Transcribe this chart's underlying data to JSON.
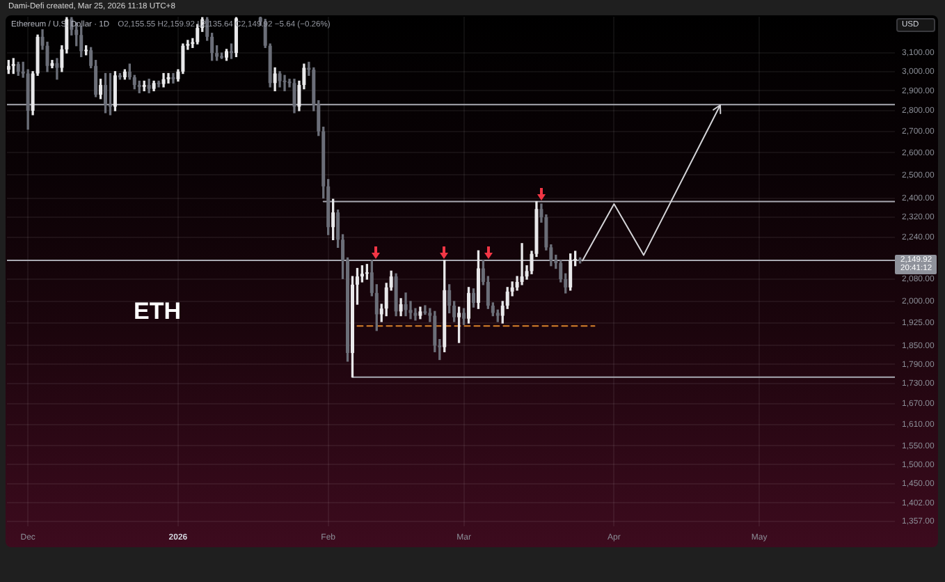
{
  "chart_data": {
    "type": "candlestick",
    "title": "Ethereum / U.S. Dollar · 1D",
    "subtitle": "O2,155.55 H2,159.92 L2,135.64 C2,149.92 −5.64 (−0.26%)",
    "ylabel": "USD",
    "annotations": [
      "ETH",
      "2,149.92",
      "20:41:12",
      "Dami-Defi created, Mar 25, 2026 11:18 UTC+8"
    ],
    "log": true,
    "grid": true,
    "xlim": [
      "2025-11-26T16:00",
      "2026-05-29"
    ],
    "xticks": [
      {
        "value": "2025-12-01",
        "label": "Dec"
      },
      {
        "value": "2026-01-01",
        "label": "2026"
      },
      {
        "value": "2026-02-01",
        "label": "Feb"
      },
      {
        "value": "2026-03-01",
        "label": "Mar"
      },
      {
        "value": "2026-04-01",
        "label": "Apr"
      },
      {
        "value": "2026-05-01",
        "label": "May"
      }
    ],
    "ylim": [
      1345,
      3305
    ],
    "yticks": [
      {
        "value": 1357,
        "label": "1,357.00"
      },
      {
        "value": 1402,
        "label": "1,402.00"
      },
      {
        "value": 1450,
        "label": "1,450.00"
      },
      {
        "value": 1500,
        "label": "1,500.00"
      },
      {
        "value": 1550,
        "label": "1,550.00"
      },
      {
        "value": 1610,
        "label": "1,610.00"
      },
      {
        "value": 1670,
        "label": "1,670.00"
      },
      {
        "value": 1730,
        "label": "1,730.00"
      },
      {
        "value": 1790,
        "label": "1,790.00"
      },
      {
        "value": 1850,
        "label": "1,850.00"
      },
      {
        "value": 1925,
        "label": "1,925.00"
      },
      {
        "value": 2000,
        "label": "2,000.00"
      },
      {
        "value": 2080,
        "label": "2,080.00"
      },
      {
        "value": 2240,
        "label": "2,240.00"
      },
      {
        "value": 2320,
        "label": "2,320.00"
      },
      {
        "value": 2400,
        "label": "2,400.00"
      },
      {
        "value": 2500,
        "label": "2,500.00"
      },
      {
        "value": 2600,
        "label": "2,600.00"
      },
      {
        "value": 2700,
        "label": "2,700.00"
      },
      {
        "value": 2800,
        "label": "2,800.00"
      },
      {
        "value": 2900,
        "label": "2,900.00"
      },
      {
        "value": 3000,
        "label": "3,000.00"
      },
      {
        "value": 3100,
        "label": "3,100.00"
      }
    ],
    "ref_lines": [
      {
        "axis": "y",
        "value": 2830,
        "color": "#a9aab2"
      },
      {
        "axis": "y",
        "value": 2150,
        "color": "#a9aab2"
      }
    ],
    "series": [
      {
        "type": "candlestick",
        "x": [
          "2025-11-27",
          "2025-11-28",
          "2025-11-29",
          "2025-11-30",
          "2025-12-01",
          "2025-12-02",
          "2025-12-03",
          "2025-12-04",
          "2025-12-05",
          "2025-12-06",
          "2025-12-07",
          "2025-12-08",
          "2025-12-09",
          "2025-12-10",
          "2025-12-11",
          "2025-12-12",
          "2025-12-13",
          "2025-12-14",
          "2025-12-15",
          "2025-12-16",
          "2025-12-17",
          "2025-12-18",
          "2025-12-19",
          "2025-12-20",
          "2025-12-21",
          "2025-12-22",
          "2025-12-23",
          "2025-12-24",
          "2025-12-25",
          "2025-12-26",
          "2025-12-27",
          "2025-12-28",
          "2025-12-29",
          "2025-12-30",
          "2025-12-31",
          "2026-01-01",
          "2026-01-02",
          "2026-01-03",
          "2026-01-04",
          "2026-01-05",
          "2026-01-06",
          "2026-01-07",
          "2026-01-08",
          "2026-01-09",
          "2026-01-10",
          "2026-01-11",
          "2026-01-12",
          "2026-01-13",
          "2026-01-18",
          "2026-01-19",
          "2026-01-20",
          "2026-01-21",
          "2026-01-22",
          "2026-01-23",
          "2026-01-24",
          "2026-01-25",
          "2026-01-26",
          "2026-01-27",
          "2026-01-28",
          "2026-01-29",
          "2026-01-30",
          "2026-01-31",
          "2026-02-01",
          "2026-02-02",
          "2026-02-03",
          "2026-02-04",
          "2026-02-05",
          "2026-02-06",
          "2026-02-07",
          "2026-02-08",
          "2026-02-09",
          "2026-02-10",
          "2026-02-11",
          "2026-02-12",
          "2026-02-13",
          "2026-02-14",
          "2026-02-15",
          "2026-02-16",
          "2026-02-17",
          "2026-02-18",
          "2026-02-19",
          "2026-02-20",
          "2026-02-21",
          "2026-02-22",
          "2026-02-23",
          "2026-02-24",
          "2026-02-25",
          "2026-02-26",
          "2026-02-27",
          "2026-02-28",
          "2026-03-01",
          "2026-03-02",
          "2026-03-03",
          "2026-03-04",
          "2026-03-05",
          "2026-03-06",
          "2026-03-07",
          "2026-03-08",
          "2026-03-09",
          "2026-03-10",
          "2026-03-11",
          "2026-03-12",
          "2026-03-13",
          "2026-03-14",
          "2026-03-15",
          "2026-03-16",
          "2026-03-17",
          "2026-03-18",
          "2026-03-19",
          "2026-03-20",
          "2026-03-21",
          "2026-03-22",
          "2026-03-23",
          "2026-03-24",
          "2026-03-25"
        ],
        "ohlc": [
          [
            3010,
            3060,
            2990,
            3030
          ],
          [
            3030,
            3070,
            2990,
            3040
          ],
          [
            3040,
            3050,
            2980,
            3000
          ],
          [
            3000,
            3050,
            2970,
            2990
          ],
          [
            2990,
            3010,
            2710,
            2800
          ],
          [
            2800,
            3000,
            2780,
            2990
          ],
          [
            2990,
            3200,
            2980,
            3190
          ],
          [
            3190,
            3230,
            3120,
            3140
          ],
          [
            3140,
            3160,
            3000,
            3030
          ],
          [
            3030,
            3060,
            3020,
            3045
          ],
          [
            3045,
            3070,
            2960,
            3020
          ],
          [
            3020,
            3140,
            3000,
            3120
          ],
          [
            3120,
            3300,
            3100,
            3290
          ],
          [
            3290,
            3300,
            3200,
            3230
          ],
          [
            3230,
            3270,
            3140,
            3200
          ],
          [
            3200,
            3250,
            3080,
            3110
          ],
          [
            3110,
            3140,
            3090,
            3115
          ],
          [
            3115,
            3130,
            3020,
            3030
          ],
          [
            3030,
            3060,
            2870,
            2880
          ],
          [
            2880,
            2960,
            2860,
            2930
          ],
          [
            2930,
            2990,
            2790,
            2830
          ],
          [
            2830,
            2990,
            2780,
            2820
          ],
          [
            2820,
            3000,
            2800,
            2980
          ],
          [
            2980,
            2990,
            2960,
            2970
          ],
          [
            2970,
            3010,
            2960,
            3000
          ],
          [
            3000,
            3040,
            2960,
            2970
          ],
          [
            2970,
            2980,
            2910,
            2930
          ],
          [
            2930,
            2950,
            2890,
            2920
          ],
          [
            2920,
            2950,
            2900,
            2930
          ],
          [
            2930,
            2960,
            2890,
            2910
          ],
          [
            2910,
            2950,
            2900,
            2940
          ],
          [
            2940,
            2950,
            2920,
            2935
          ],
          [
            2935,
            2990,
            2920,
            2960
          ],
          [
            2960,
            2990,
            2940,
            2970
          ],
          [
            2970,
            2990,
            2940,
            2960
          ],
          [
            2960,
            3010,
            2950,
            3000
          ],
          [
            3000,
            3150,
            2990,
            3140
          ],
          [
            3140,
            3170,
            3120,
            3150
          ],
          [
            3150,
            3180,
            3130,
            3160
          ],
          [
            3160,
            3260,
            3150,
            3240
          ],
          [
            3240,
            3300,
            3220,
            3290
          ],
          [
            3290,
            3300,
            3170,
            3190
          ],
          [
            3190,
            3210,
            3060,
            3100
          ],
          [
            3100,
            3140,
            3060,
            3080
          ],
          [
            3080,
            3100,
            3070,
            3075
          ],
          [
            3075,
            3120,
            3060,
            3110
          ],
          [
            3110,
            3150,
            3070,
            3100
          ],
          [
            3100,
            3300,
            3080,
            3295
          ],
          [
            3300,
            3303,
            3255,
            3275
          ],
          [
            3275,
            3290,
            3130,
            3140
          ],
          [
            3140,
            3150,
            2920,
            2940
          ],
          [
            2940,
            3020,
            2900,
            2990
          ],
          [
            2990,
            3000,
            2920,
            2950
          ],
          [
            2950,
            2980,
            2900,
            2945
          ],
          [
            2945,
            2960,
            2920,
            2940
          ],
          [
            2940,
            2960,
            2790,
            2820
          ],
          [
            2820,
            2950,
            2800,
            2930
          ],
          [
            2930,
            3040,
            2910,
            3020
          ],
          [
            3020,
            3050,
            2980,
            3010
          ],
          [
            3010,
            3020,
            2800,
            2830
          ],
          [
            2830,
            2850,
            2680,
            2700
          ],
          [
            2700,
            2720,
            2400,
            2450
          ],
          [
            2450,
            2480,
            2250,
            2280
          ],
          [
            2280,
            2395,
            2230,
            2340
          ],
          [
            2340,
            2350,
            2200,
            2230
          ],
          [
            2230,
            2250,
            2082,
            2150
          ],
          [
            2150,
            2160,
            1800,
            1826
          ],
          [
            1826,
            2090,
            1750,
            2060
          ],
          [
            2060,
            2120,
            1990,
            2090
          ],
          [
            2090,
            2130,
            2070,
            2100
          ],
          [
            2100,
            2135,
            2080,
            2105
          ],
          [
            2105,
            2150,
            2020,
            2030
          ],
          [
            2030,
            2060,
            1900,
            1955
          ],
          [
            1955,
            1990,
            1930,
            1975
          ],
          [
            1975,
            2065,
            1950,
            2050
          ],
          [
            2050,
            2110,
            2040,
            2090
          ],
          [
            2090,
            2100,
            1950,
            1965
          ],
          [
            1965,
            2010,
            1950,
            1990
          ],
          [
            1990,
            2030,
            1950,
            1970
          ],
          [
            1970,
            2000,
            1940,
            1960
          ],
          [
            1960,
            1975,
            1935,
            1950
          ],
          [
            1950,
            1980,
            1940,
            1965
          ],
          [
            1965,
            1985,
            1955,
            1960
          ],
          [
            1960,
            1975,
            1930,
            1950
          ],
          [
            1950,
            1965,
            1830,
            1850
          ],
          [
            1850,
            1870,
            1805,
            1845
          ],
          [
            1845,
            2150,
            1830,
            2040
          ],
          [
            2040,
            2060,
            1960,
            1985
          ],
          [
            1985,
            2000,
            1930,
            1945
          ],
          [
            1945,
            1980,
            1860,
            1960
          ],
          [
            1960,
            1975,
            1920,
            1940
          ],
          [
            1940,
            2050,
            1925,
            2030
          ],
          [
            2030,
            2045,
            1980,
            1995
          ],
          [
            1995,
            2187,
            1975,
            2120
          ],
          [
            2120,
            2150,
            2060,
            2070
          ],
          [
            2070,
            2090,
            1975,
            1985
          ],
          [
            1985,
            1995,
            1950,
            1960
          ],
          [
            1960,
            1970,
            1930,
            1950
          ],
          [
            1950,
            2000,
            1925,
            1985
          ],
          [
            1985,
            2050,
            1975,
            2035
          ],
          [
            2035,
            2070,
            2020,
            2050
          ],
          [
            2050,
            2090,
            2040,
            2070
          ],
          [
            2070,
            2215,
            2060,
            2090
          ],
          [
            2090,
            2130,
            2080,
            2110
          ],
          [
            2110,
            2185,
            2100,
            2175
          ],
          [
            2175,
            2385,
            2165,
            2354
          ],
          [
            2354,
            2375,
            2300,
            2320
          ],
          [
            2320,
            2330,
            2190,
            2200
          ],
          [
            2200,
            2210,
            2130,
            2150
          ],
          [
            2150,
            2170,
            2120,
            2140
          ],
          [
            2140,
            2150,
            2070,
            2080
          ],
          [
            2080,
            2100,
            2030,
            2050
          ],
          [
            2050,
            2175,
            2040,
            2150
          ],
          [
            2150,
            2185,
            2130,
            2155.56
          ],
          [
            2155.55,
            2160,
            2140,
            2149.92
          ]
        ],
        "colors": [
          "#e8e8ea",
          "#e8e8ea",
          "#6b6e78",
          "#6b6e78",
          "#6b6e78",
          "#e8e8ea",
          "#e8e8ea",
          "#6b6e78",
          "#6b6e78",
          "#e8e8ea",
          "#6b6e78",
          "#e8e8ea",
          "#e8e8ea",
          "#6b6e78",
          "#6b6e78",
          "#6b6e78",
          "#e8e8ea",
          "#6b6e78",
          "#6b6e78",
          "#e8e8ea",
          "#6b6e78",
          "#6b6e78",
          "#e8e8ea",
          "#6b6e78",
          "#e8e8ea",
          "#6b6e78",
          "#6b6e78",
          "#6b6e78",
          "#e8e8ea",
          "#6b6e78",
          "#e8e8ea",
          "#6b6e78",
          "#e8e8ea",
          "#e8e8ea",
          "#6b6e78",
          "#e8e8ea",
          "#e8e8ea",
          "#e8e8ea",
          "#e8e8ea",
          "#e8e8ea",
          "#e8e8ea",
          "#6b6e78",
          "#6b6e78",
          "#6b6e78",
          "#6b6e78",
          "#e8e8ea",
          "#6b6e78",
          "#e8e8ea",
          "#6b6e78",
          "#6b6e78",
          "#6b6e78",
          "#e8e8ea",
          "#6b6e78",
          "#6b6e78",
          "#6b6e78",
          "#6b6e78",
          "#e8e8ea",
          "#e8e8ea",
          "#6b6e78",
          "#6b6e78",
          "#6b6e78",
          "#6b6e78",
          "#6b6e78",
          "#e8e8ea",
          "#6b6e78",
          "#6b6e78",
          "#6b6e78",
          "#e8e8ea",
          "#e8e8ea",
          "#e8e8ea",
          "#e8e8ea",
          "#6b6e78",
          "#6b6e78",
          "#e8e8ea",
          "#e8e8ea",
          "#e8e8ea",
          "#6b6e78",
          "#e8e8ea",
          "#6b6e78",
          "#6b6e78",
          "#6b6e78",
          "#e8e8ea",
          "#6b6e78",
          "#6b6e78",
          "#6b6e78",
          "#6b6e78",
          "#e8e8ea",
          "#6b6e78",
          "#6b6e78",
          "#e8e8ea",
          "#6b6e78",
          "#e8e8ea",
          "#6b6e78",
          "#e8e8ea",
          "#6b6e78",
          "#6b6e78",
          "#6b6e78",
          "#6b6e78",
          "#e8e8ea",
          "#e8e8ea",
          "#e8e8ea",
          "#e8e8ea",
          "#e8e8ea",
          "#e8e8ea",
          "#e8e8ea",
          "#e8e8ea",
          "#6b6e78",
          "#6b6e78",
          "#6b6e78",
          "#6b6e78",
          "#6b6e78",
          "#6b6e78",
          "#e8e8ea",
          "#e8e8ea",
          "#6b6e78"
        ]
      },
      {
        "type": "line",
        "x": [
          "2026-01-31",
          "2026-05-29"
        ],
        "values": [
          2385,
          2385
        ],
        "color": "#a9aab2"
      },
      {
        "type": "line",
        "x": [
          "2026-02-06",
          "2026-05-29"
        ],
        "values": [
          1750,
          1750
        ],
        "color": "#a9aab2"
      },
      {
        "type": "line",
        "x": [
          "2026-02-07",
          "2026-03-28"
        ],
        "values": [
          1915,
          1915
        ],
        "color": "#d9822b",
        "line_style": "dashed"
      }
    ]
  }
}
